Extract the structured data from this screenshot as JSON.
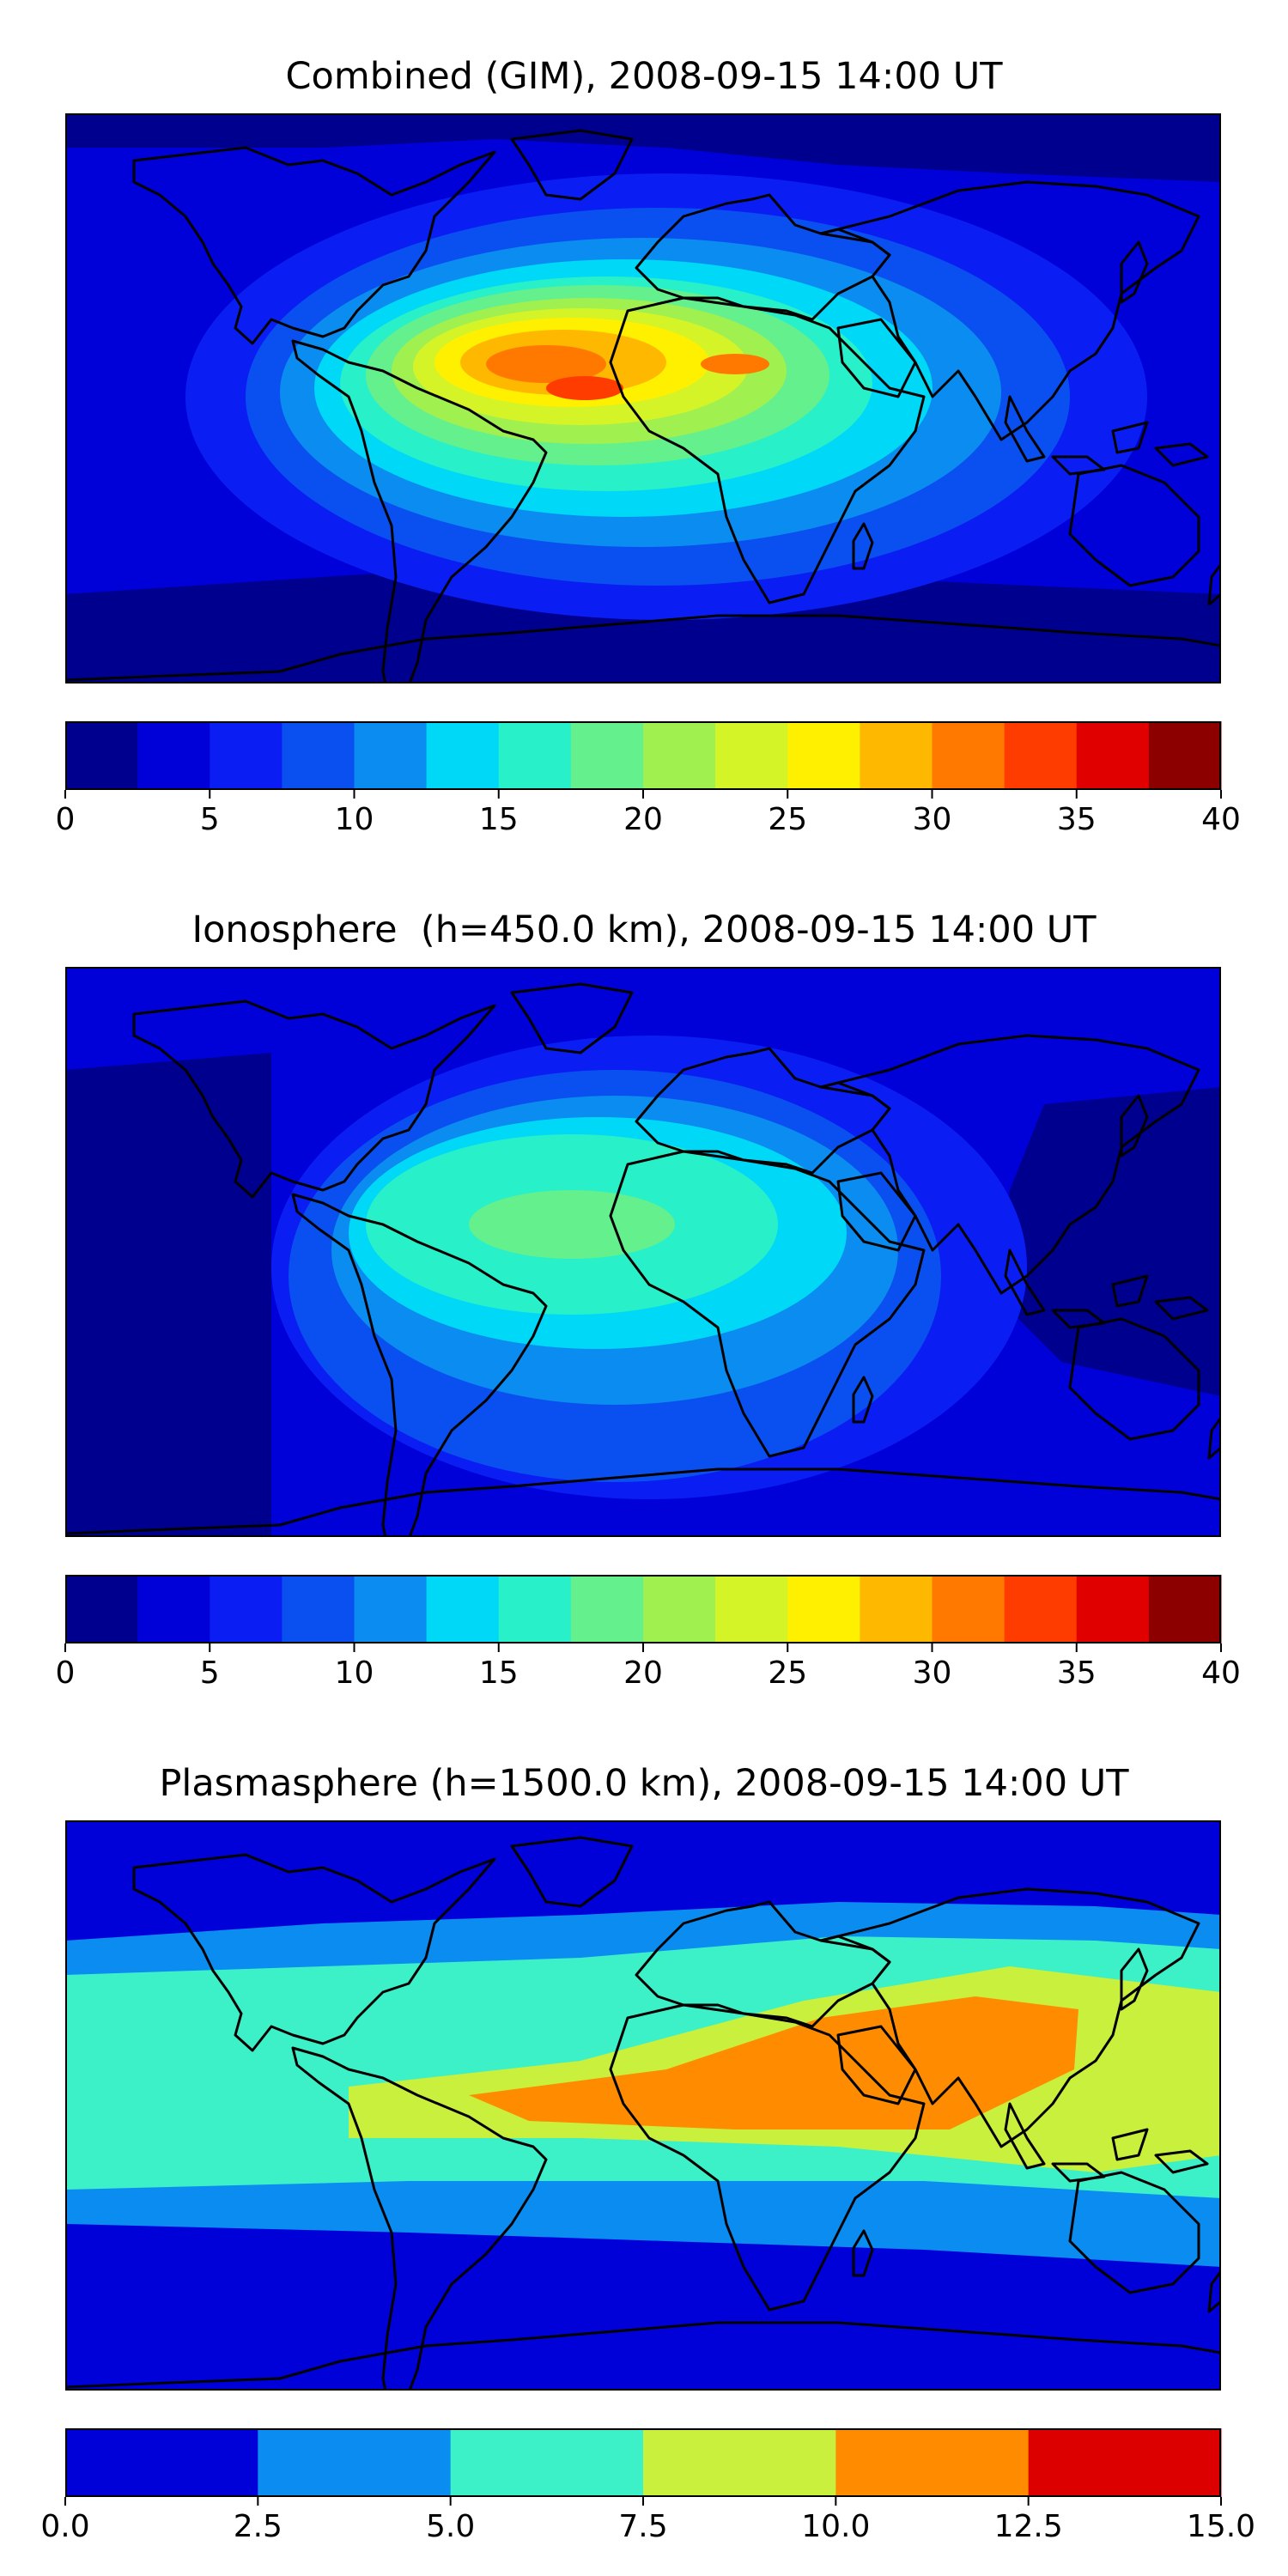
{
  "panels": [
    {
      "title": "Combined (GIM), 2008-09-15 14:00 UT",
      "colorbar": {
        "boundaries": [
          0,
          2.5,
          5,
          7.5,
          10,
          12.5,
          15,
          17.5,
          20,
          22.5,
          25,
          27.5,
          30,
          32.5,
          35,
          37.5,
          40
        ],
        "colors": [
          "#00008f",
          "#0000d8",
          "#0a1ef4",
          "#0a50f0",
          "#0a8cf0",
          "#00d8f8",
          "#28f0c8",
          "#64f08c",
          "#a0f050",
          "#d4f428",
          "#fff000",
          "#ffb800",
          "#ff7800",
          "#ff3c00",
          "#e00000",
          "#8c0000"
        ],
        "tick_values": [
          0,
          5,
          10,
          15,
          20,
          25,
          30,
          35,
          40
        ],
        "tick_labels": [
          "0",
          "5",
          "10",
          "15",
          "20",
          "25",
          "30",
          "35",
          "40"
        ]
      }
    },
    {
      "title": "Ionosphere  (h=450.0 km), 2008-09-15 14:00 UT",
      "colorbar": {
        "boundaries": [
          0,
          2.5,
          5,
          7.5,
          10,
          12.5,
          15,
          17.5,
          20,
          22.5,
          25,
          27.5,
          30,
          32.5,
          35,
          37.5,
          40
        ],
        "colors": [
          "#00008f",
          "#0000d8",
          "#0a1ef4",
          "#0a50f0",
          "#0a8cf0",
          "#00d8f8",
          "#28f0c8",
          "#64f08c",
          "#a0f050",
          "#d4f428",
          "#fff000",
          "#ffb800",
          "#ff7800",
          "#ff3c00",
          "#e00000",
          "#8c0000"
        ],
        "tick_values": [
          0,
          5,
          10,
          15,
          20,
          25,
          30,
          35,
          40
        ],
        "tick_labels": [
          "0",
          "5",
          "10",
          "15",
          "20",
          "25",
          "30",
          "35",
          "40"
        ]
      }
    },
    {
      "title": "Plasmasphere (h=1500.0 km), 2008-09-15 14:00 UT",
      "colorbar": {
        "boundaries": [
          0,
          2.5,
          5,
          7.5,
          10,
          12.5,
          15
        ],
        "colors": [
          "#0000d8",
          "#0a8cf0",
          "#3cf0c8",
          "#c8f03c",
          "#ff8c00",
          "#dc0000"
        ],
        "tick_values": [
          0,
          2.5,
          5,
          7.5,
          10,
          12.5,
          15
        ],
        "tick_labels": [
          "0.0",
          "2.5",
          "5.0",
          "7.5",
          "10.0",
          "12.5",
          "15.0"
        ]
      }
    }
  ]
}
